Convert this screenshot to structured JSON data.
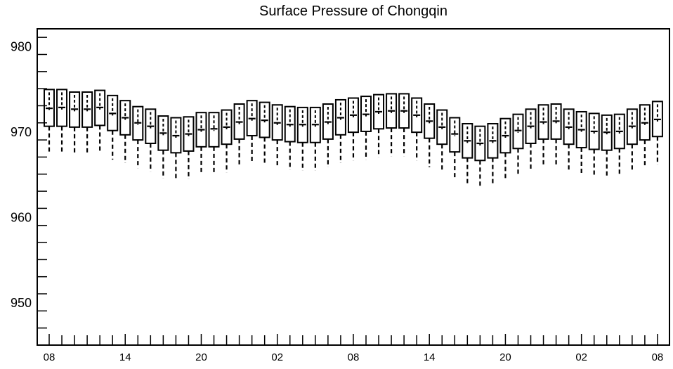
{
  "chart_data": {
    "type": "boxplot",
    "title": "Surface Pressure of Chongqin",
    "xlabel": "",
    "ylabel": "",
    "ylim": [
      945,
      982
    ],
    "y_ticks": [
      950,
      960,
      970,
      980
    ],
    "x_tick_labels": [
      "08",
      "14",
      "20",
      "02",
      "08",
      "14",
      "20",
      "02",
      "08"
    ],
    "x_tick_positions": [
      0,
      6,
      12,
      18,
      24,
      30,
      36,
      42,
      48
    ],
    "grid": false,
    "series": [
      {
        "boxes": [
          {
            "x": 0,
            "whisker_low": 967.4,
            "q1": 970.6,
            "median": 972.7,
            "q3": 974.9
          },
          {
            "x": 1,
            "whisker_low": 967.5,
            "q1": 970.6,
            "median": 972.8,
            "q3": 974.9
          },
          {
            "x": 2,
            "whisker_low": 967.4,
            "q1": 970.5,
            "median": 972.6,
            "q3": 974.6
          },
          {
            "x": 3,
            "whisker_low": 967.3,
            "q1": 970.5,
            "median": 972.6,
            "q3": 974.6
          },
          {
            "x": 4,
            "whisker_low": 967.5,
            "q1": 970.7,
            "median": 972.8,
            "q3": 974.8
          },
          {
            "x": 5,
            "whisker_low": 966.7,
            "q1": 970.1,
            "median": 972.1,
            "q3": 974.2
          },
          {
            "x": 6,
            "whisker_low": 966.3,
            "q1": 969.6,
            "median": 971.6,
            "q3": 973.6
          },
          {
            "x": 7,
            "whisker_low": 965.7,
            "q1": 969.0,
            "median": 971.0,
            "q3": 972.9
          },
          {
            "x": 8,
            "whisker_low": 965.3,
            "q1": 968.6,
            "median": 970.6,
            "q3": 972.6
          },
          {
            "x": 9,
            "whisker_low": 964.5,
            "q1": 967.8,
            "median": 969.8,
            "q3": 971.8
          },
          {
            "x": 10,
            "whisker_low": 964.3,
            "q1": 967.5,
            "median": 969.5,
            "q3": 971.6
          },
          {
            "x": 11,
            "whisker_low": 964.4,
            "q1": 967.7,
            "median": 969.7,
            "q3": 971.7
          },
          {
            "x": 12,
            "whisker_low": 965.0,
            "q1": 968.2,
            "median": 970.2,
            "q3": 972.2
          },
          {
            "x": 13,
            "whisker_low": 965.0,
            "q1": 968.2,
            "median": 970.3,
            "q3": 972.2
          },
          {
            "x": 14,
            "whisker_low": 965.2,
            "q1": 968.5,
            "median": 970.5,
            "q3": 972.5
          },
          {
            "x": 15,
            "whisker_low": 965.9,
            "q1": 969.1,
            "median": 971.1,
            "q3": 973.2
          },
          {
            "x": 16,
            "whisker_low": 966.3,
            "q1": 969.5,
            "median": 971.5,
            "q3": 973.6
          },
          {
            "x": 17,
            "whisker_low": 966.1,
            "q1": 969.3,
            "median": 971.3,
            "q3": 973.4
          },
          {
            "x": 18,
            "whisker_low": 965.8,
            "q1": 969.0,
            "median": 971.0,
            "q3": 973.1
          },
          {
            "x": 19,
            "whisker_low": 965.5,
            "q1": 968.8,
            "median": 970.8,
            "q3": 972.9
          },
          {
            "x": 20,
            "whisker_low": 965.4,
            "q1": 968.7,
            "median": 970.8,
            "q3": 972.8
          },
          {
            "x": 21,
            "whisker_low": 965.4,
            "q1": 968.7,
            "median": 970.8,
            "q3": 972.8
          },
          {
            "x": 22,
            "whisker_low": 965.8,
            "q1": 969.1,
            "median": 971.1,
            "q3": 973.2
          },
          {
            "x": 23,
            "whisker_low": 966.3,
            "q1": 969.6,
            "median": 971.6,
            "q3": 973.7
          },
          {
            "x": 24,
            "whisker_low": 966.6,
            "q1": 969.9,
            "median": 971.9,
            "q3": 973.9
          },
          {
            "x": 25,
            "whisker_low": 966.7,
            "q1": 970.0,
            "median": 972.0,
            "q3": 974.1
          },
          {
            "x": 26,
            "whisker_low": 967.0,
            "q1": 970.3,
            "median": 972.3,
            "q3": 974.3
          },
          {
            "x": 27,
            "whisker_low": 967.1,
            "q1": 970.4,
            "median": 972.4,
            "q3": 974.4
          },
          {
            "x": 28,
            "whisker_low": 967.1,
            "q1": 970.4,
            "median": 972.4,
            "q3": 974.4
          },
          {
            "x": 29,
            "whisker_low": 966.6,
            "q1": 969.9,
            "median": 971.9,
            "q3": 973.9
          },
          {
            "x": 30,
            "whisker_low": 965.8,
            "q1": 969.2,
            "median": 971.2,
            "q3": 973.2
          },
          {
            "x": 31,
            "whisker_low": 965.3,
            "q1": 968.5,
            "median": 970.5,
            "q3": 972.5
          },
          {
            "x": 32,
            "whisker_low": 964.4,
            "q1": 967.6,
            "median": 969.7,
            "q3": 971.6
          },
          {
            "x": 33,
            "whisker_low": 963.7,
            "q1": 966.9,
            "median": 968.9,
            "q3": 970.9
          },
          {
            "x": 34,
            "whisker_low": 963.5,
            "q1": 966.6,
            "median": 968.6,
            "q3": 970.6
          },
          {
            "x": 35,
            "whisker_low": 963.7,
            "q1": 966.9,
            "median": 968.9,
            "q3": 970.9
          },
          {
            "x": 36,
            "whisker_low": 964.3,
            "q1": 967.5,
            "median": 969.5,
            "q3": 971.5
          },
          {
            "x": 37,
            "whisker_low": 965.0,
            "q1": 968.0,
            "median": 970.1,
            "q3": 972.0
          },
          {
            "x": 38,
            "whisker_low": 965.6,
            "q1": 968.6,
            "median": 970.6,
            "q3": 972.6
          },
          {
            "x": 39,
            "whisker_low": 966.0,
            "q1": 969.1,
            "median": 971.1,
            "q3": 973.1
          },
          {
            "x": 40,
            "whisker_low": 966.1,
            "q1": 969.1,
            "median": 971.2,
            "q3": 973.2
          },
          {
            "x": 41,
            "whisker_low": 965.3,
            "q1": 968.5,
            "median": 970.5,
            "q3": 972.6
          },
          {
            "x": 42,
            "whisker_low": 964.9,
            "q1": 968.1,
            "median": 970.2,
            "q3": 972.3
          },
          {
            "x": 43,
            "whisker_low": 964.7,
            "q1": 967.9,
            "median": 970.0,
            "q3": 972.1
          },
          {
            "x": 44,
            "whisker_low": 964.6,
            "q1": 967.8,
            "median": 969.9,
            "q3": 971.9
          },
          {
            "x": 45,
            "whisker_low": 964.8,
            "q1": 968.0,
            "median": 970.0,
            "q3": 972.0
          },
          {
            "x": 46,
            "whisker_low": 965.3,
            "q1": 968.5,
            "median": 970.6,
            "q3": 972.6
          },
          {
            "x": 47,
            "whisker_low": 965.8,
            "q1": 969.0,
            "median": 971.0,
            "q3": 973.1
          },
          {
            "x": 48,
            "whisker_low": 966.1,
            "q1": 969.4,
            "median": 971.4,
            "q3": 973.5
          }
        ]
      }
    ]
  }
}
